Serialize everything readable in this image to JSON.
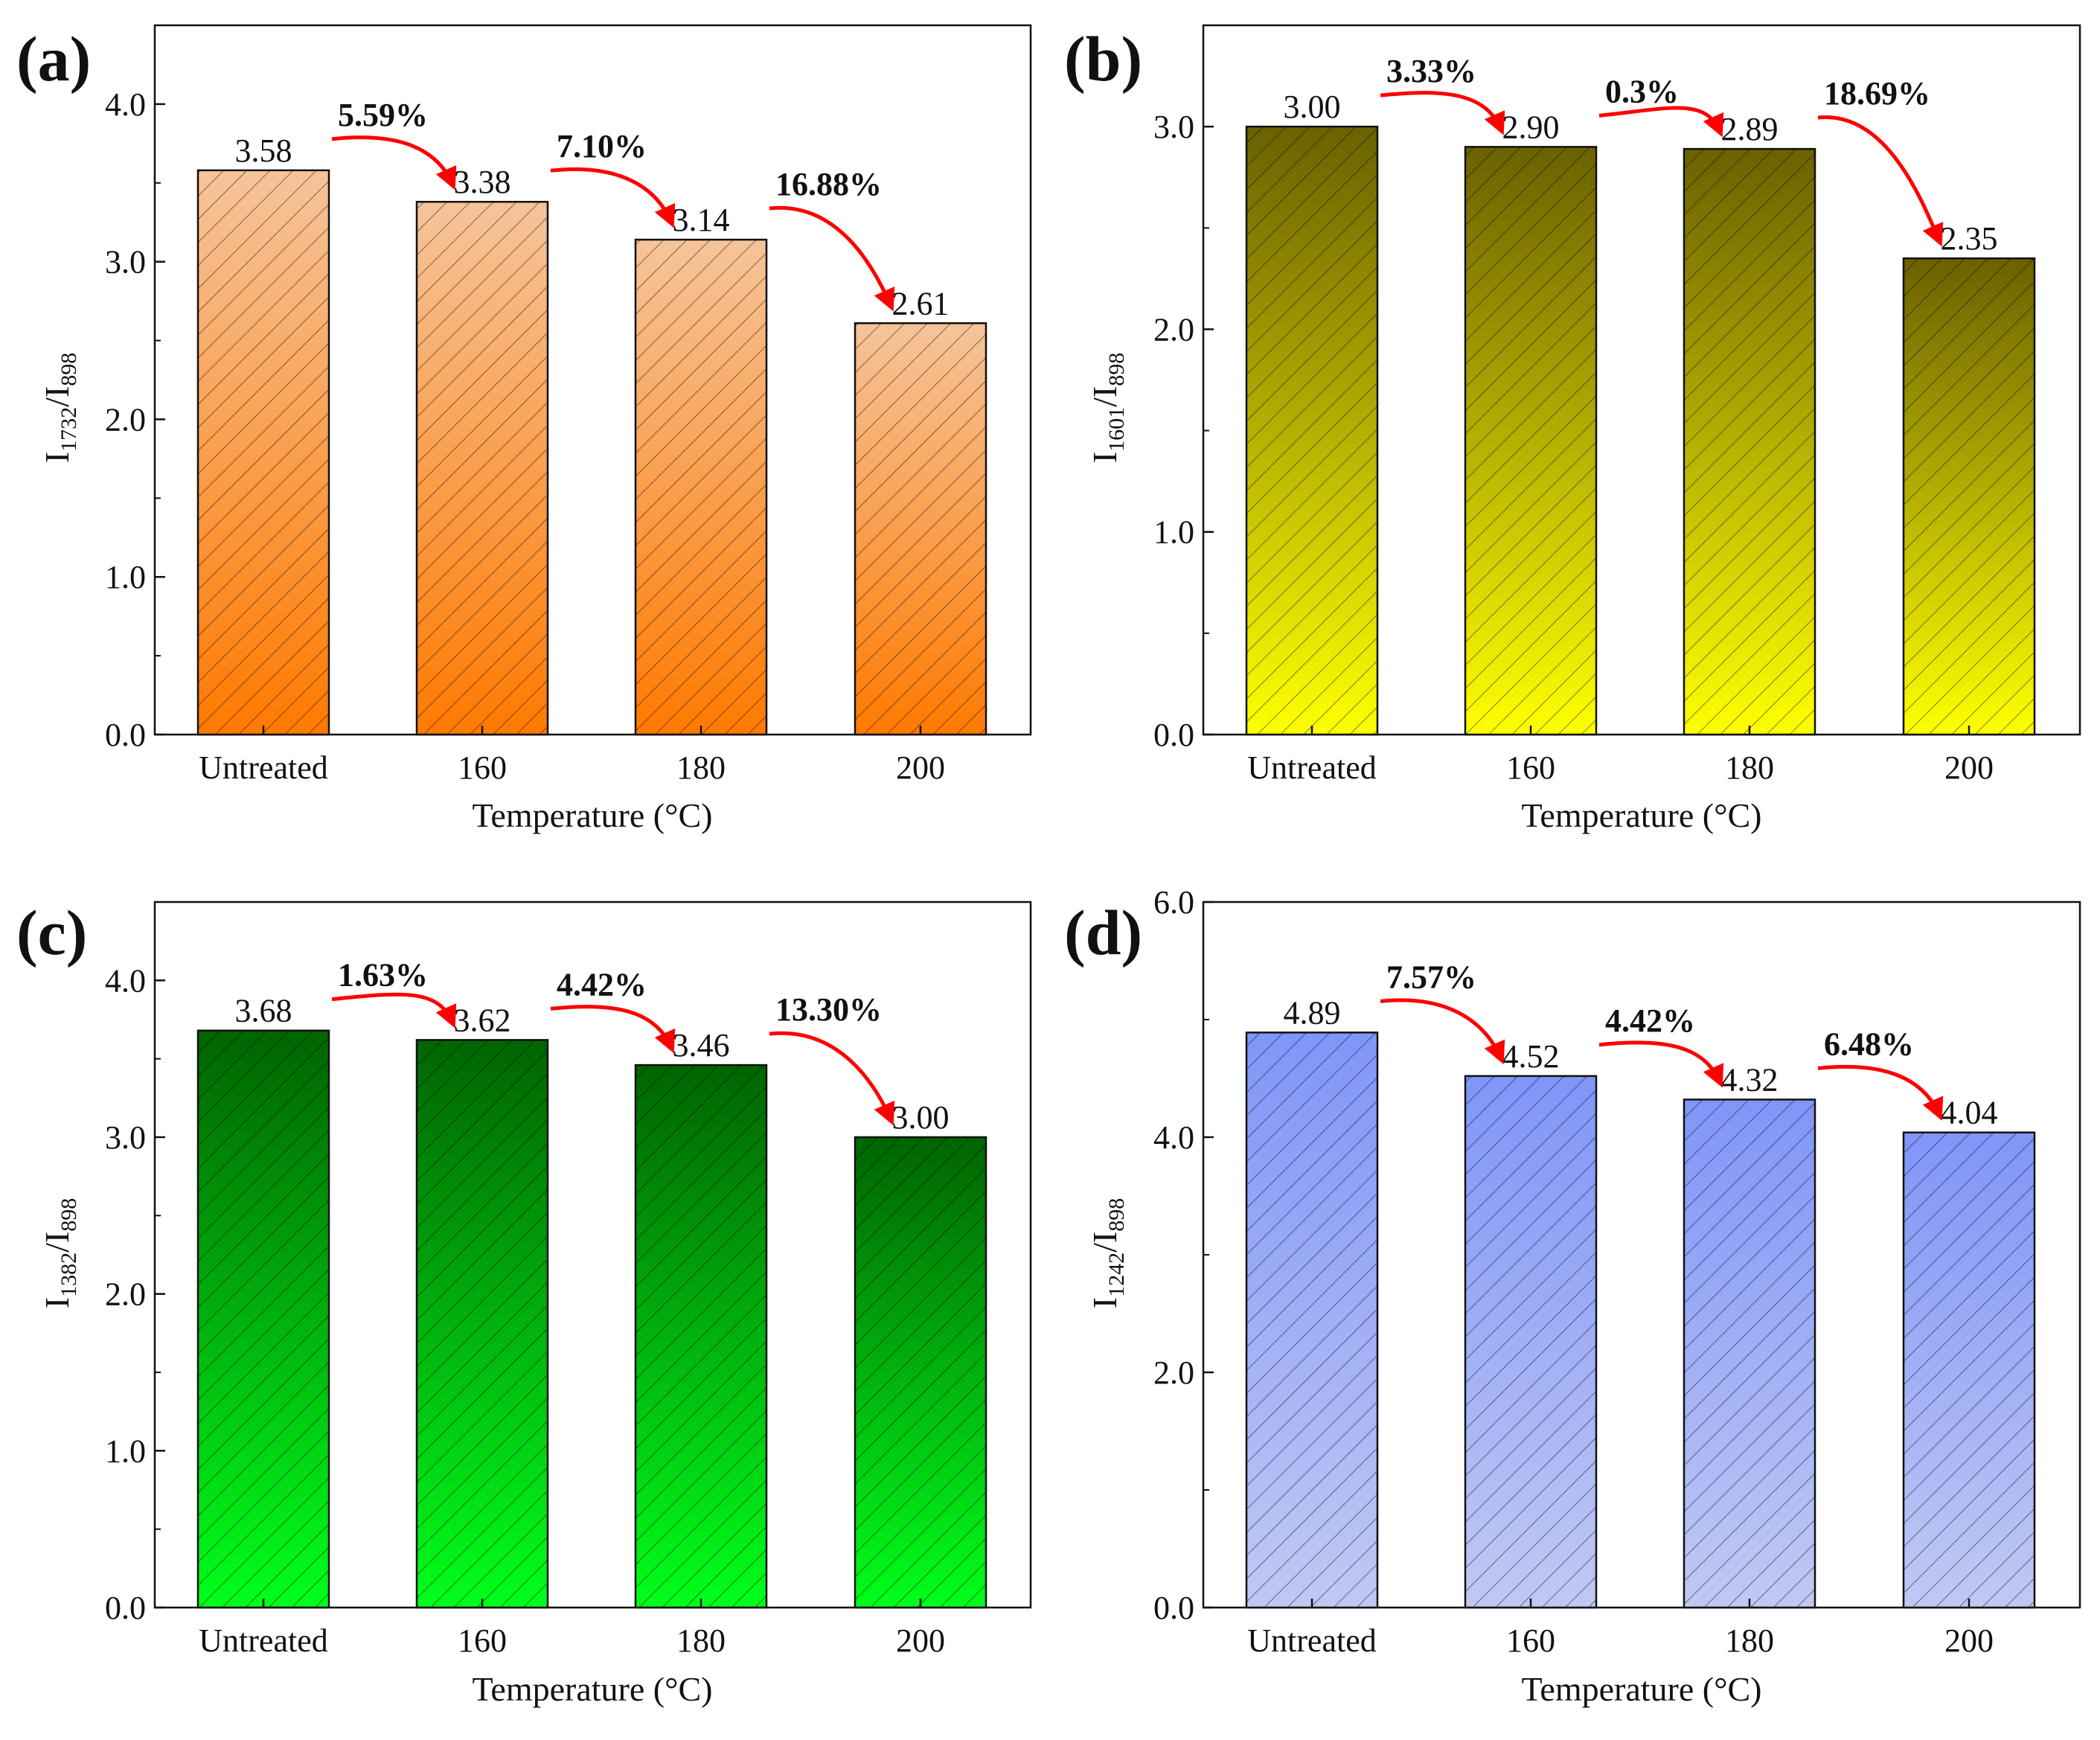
{
  "chart_data": [
    {
      "panel": "(a)",
      "type": "bar",
      "categories": [
        "Untreated",
        "160",
        "180",
        "200"
      ],
      "values": [
        3.58,
        3.38,
        3.14,
        2.61
      ],
      "value_labels": [
        "3.58",
        "3.38",
        "3.14",
        "2.61"
      ],
      "changes": [
        "5.59%",
        "7.10%",
        "16.88%"
      ],
      "xlabel": "Temperature (°C)",
      "ylabel": {
        "main": "I",
        "sub1": "1732",
        "sep": "/I",
        "sub2": "898"
      },
      "ylim": [
        0,
        4.5
      ],
      "yticks": [
        0,
        1,
        2,
        3,
        4
      ],
      "ytick_labels": [
        "0.0",
        "1.0",
        "2.0",
        "3.0",
        "4.0"
      ],
      "color_top": "#f6c49a",
      "color_bottom": "#ff7a00"
    },
    {
      "panel": "(b)",
      "type": "bar",
      "categories": [
        "Untreated",
        "160",
        "180",
        "200"
      ],
      "values": [
        3.0,
        2.9,
        2.89,
        2.35
      ],
      "value_labels": [
        "3.00",
        "2.90",
        "2.89",
        "2.35"
      ],
      "changes": [
        "3.33%",
        "0.3%",
        "18.69%"
      ],
      "xlabel": "Temperature (°C)",
      "ylabel": {
        "main": "I",
        "sub1": "1601",
        "sep": "/I",
        "sub2": "898"
      },
      "ylim": [
        0,
        3.5
      ],
      "yticks": [
        0,
        1,
        2,
        3
      ],
      "ytick_labels": [
        "0.0",
        "1.0",
        "2.0",
        "3.0"
      ],
      "color_top": "#6b6100",
      "color_bottom": "#ffff00"
    },
    {
      "panel": "(c)",
      "type": "bar",
      "categories": [
        "Untreated",
        "160",
        "180",
        "200"
      ],
      "values": [
        3.68,
        3.62,
        3.46,
        3.0
      ],
      "value_labels": [
        "3.68",
        "3.62",
        "3.46",
        "3.00"
      ],
      "changes": [
        "1.63%",
        "4.42%",
        "13.30%"
      ],
      "xlabel": "Temperature (°C)",
      "ylabel": {
        "main": "I",
        "sub1": "1382",
        "sep": "/I",
        "sub2": "898"
      },
      "ylim": [
        0,
        4.5
      ],
      "yticks": [
        0,
        1,
        2,
        3,
        4
      ],
      "ytick_labels": [
        "0.0",
        "1.0",
        "2.0",
        "3.0",
        "4.0"
      ],
      "color_top": "#006400",
      "color_bottom": "#00ff1a"
    },
    {
      "panel": "(d)",
      "type": "bar",
      "categories": [
        "Untreated",
        "160",
        "180",
        "200"
      ],
      "values": [
        4.89,
        4.52,
        4.32,
        4.04
      ],
      "value_labels": [
        "4.89",
        "4.52",
        "4.32",
        "4.04"
      ],
      "changes": [
        "7.57%",
        "4.42%",
        "6.48%"
      ],
      "xlabel": "Temperature (°C)",
      "ylabel": {
        "main": "I",
        "sub1": "1242",
        "sep": "/I",
        "sub2": "898"
      },
      "ylim": [
        0,
        6.0
      ],
      "yticks": [
        0,
        2,
        4,
        6
      ],
      "ytick_labels": [
        "0.0",
        "2.0",
        "4.0",
        "6.0"
      ],
      "color_top": "#8095f8",
      "color_bottom": "#c0c9f4"
    }
  ]
}
